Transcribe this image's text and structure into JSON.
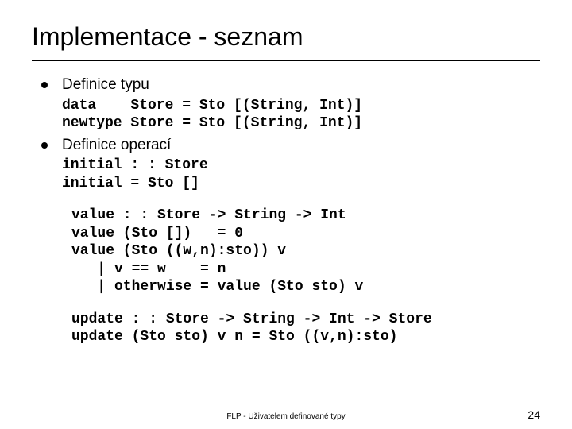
{
  "title": "Implementace - seznam",
  "bullets": [
    {
      "label": "Definice typu",
      "code": "data    Store = Sto [(String, Int)]\nnewtype Store = Sto [(String, Int)]"
    },
    {
      "label": "Definice operací",
      "code": "initial : : Store\ninitial = Sto []"
    }
  ],
  "codeblocks": [
    "value : : Store -> String -> Int\nvalue (Sto []) _ = 0\nvalue (Sto ((w,n):sto)) v\n   | v == w    = n\n   | otherwise = value (Sto sto) v",
    "update : : Store -> String -> Int -> Store\nupdate (Sto sto) v n = Sto ((v,n):sto)"
  ],
  "footer": "FLP - Uživatelem definované typy",
  "pageNumber": "24",
  "colors": {
    "background": "#ffffff",
    "text": "#000000",
    "rule": "#000000"
  },
  "fonts": {
    "title_size": 32,
    "body_size": 19,
    "code_size": 18,
    "footer_size": 10,
    "code_family": "Courier New"
  }
}
